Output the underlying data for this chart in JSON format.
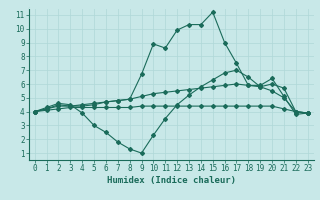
{
  "xlabel": "Humidex (Indice chaleur)",
  "xlim": [
    -0.5,
    23.5
  ],
  "ylim": [
    0.5,
    11.5
  ],
  "xticks": [
    0,
    1,
    2,
    3,
    4,
    5,
    6,
    7,
    8,
    9,
    10,
    11,
    12,
    13,
    14,
    15,
    16,
    17,
    18,
    19,
    20,
    21,
    22,
    23
  ],
  "yticks": [
    1,
    2,
    3,
    4,
    5,
    6,
    7,
    8,
    9,
    10,
    11
  ],
  "background_color": "#c8e8e8",
  "grid_color": "#b0d8d8",
  "line_color": "#1a6b5a",
  "lines": [
    {
      "x": [
        0,
        1,
        2,
        3,
        4,
        5,
        6,
        7,
        8,
        9,
        10,
        11,
        12,
        13,
        14,
        15,
        16,
        17,
        18,
        19,
        20,
        21,
        22,
        23
      ],
      "y": [
        4.0,
        4.3,
        4.6,
        4.5,
        3.9,
        3.0,
        2.5,
        1.8,
        1.3,
        1.0,
        2.3,
        3.5,
        4.5,
        5.2,
        5.8,
        6.3,
        6.8,
        7.0,
        6.5,
        5.8,
        5.5,
        5.0,
        4.0,
        3.9
      ]
    },
    {
      "x": [
        0,
        1,
        2,
        3,
        4,
        5,
        6,
        7,
        8,
        9,
        10,
        11,
        12,
        13,
        14,
        15,
        16,
        17,
        18,
        19,
        20,
        21,
        22,
        23
      ],
      "y": [
        4.0,
        4.2,
        4.5,
        4.4,
        4.4,
        4.5,
        4.7,
        4.8,
        4.9,
        6.7,
        8.9,
        8.6,
        9.9,
        10.3,
        10.3,
        11.2,
        9.0,
        7.5,
        5.9,
        5.9,
        6.4,
        5.1,
        3.8,
        3.9
      ]
    },
    {
      "x": [
        0,
        1,
        2,
        3,
        4,
        5,
        6,
        7,
        8,
        9,
        10,
        11,
        12,
        13,
        14,
        15,
        16,
        17,
        18,
        19,
        20,
        21,
        22,
        23
      ],
      "y": [
        4.0,
        4.2,
        4.4,
        4.4,
        4.5,
        4.6,
        4.7,
        4.8,
        4.9,
        5.1,
        5.3,
        5.4,
        5.5,
        5.6,
        5.7,
        5.8,
        5.9,
        6.0,
        5.9,
        5.8,
        6.0,
        5.7,
        4.0,
        3.9
      ]
    },
    {
      "x": [
        0,
        1,
        2,
        3,
        4,
        5,
        6,
        7,
        8,
        9,
        10,
        11,
        12,
        13,
        14,
        15,
        16,
        17,
        18,
        19,
        20,
        21,
        22,
        23
      ],
      "y": [
        4.0,
        4.1,
        4.2,
        4.3,
        4.3,
        4.3,
        4.3,
        4.3,
        4.3,
        4.4,
        4.4,
        4.4,
        4.4,
        4.4,
        4.4,
        4.4,
        4.4,
        4.4,
        4.4,
        4.4,
        4.4,
        4.2,
        4.0,
        3.9
      ]
    }
  ]
}
